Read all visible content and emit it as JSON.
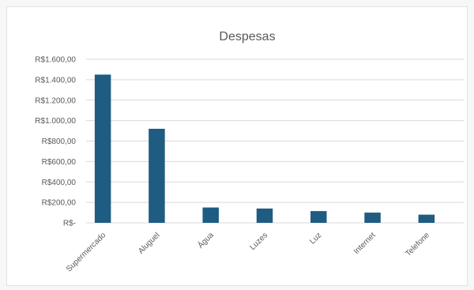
{
  "chart_data": {
    "type": "bar",
    "title": "Despesas",
    "xlabel": "",
    "ylabel": "",
    "categories": [
      "Supermercado",
      "Aluguel",
      "Água",
      "Luzes",
      "Luz",
      "Internet",
      "Telefone"
    ],
    "series": [
      {
        "values": [
          1450,
          920,
          150,
          140,
          115,
          100,
          80
        ]
      }
    ],
    "ylim": [
      0,
      1600
    ],
    "yticks": [
      0,
      200,
      400,
      600,
      800,
      1000,
      1200,
      1400,
      1600
    ],
    "ytick_labels": [
      "R$-",
      "R$200,00",
      "R$400,00",
      "R$600,00",
      "R$800,00",
      "R$1.000,00",
      "R$1.200,00",
      "R$1.400,00",
      "R$1.600,00"
    ],
    "grid": true,
    "legend": "none",
    "bar_color": "#1f5c82",
    "grid_color": "#d9d9d9"
  }
}
